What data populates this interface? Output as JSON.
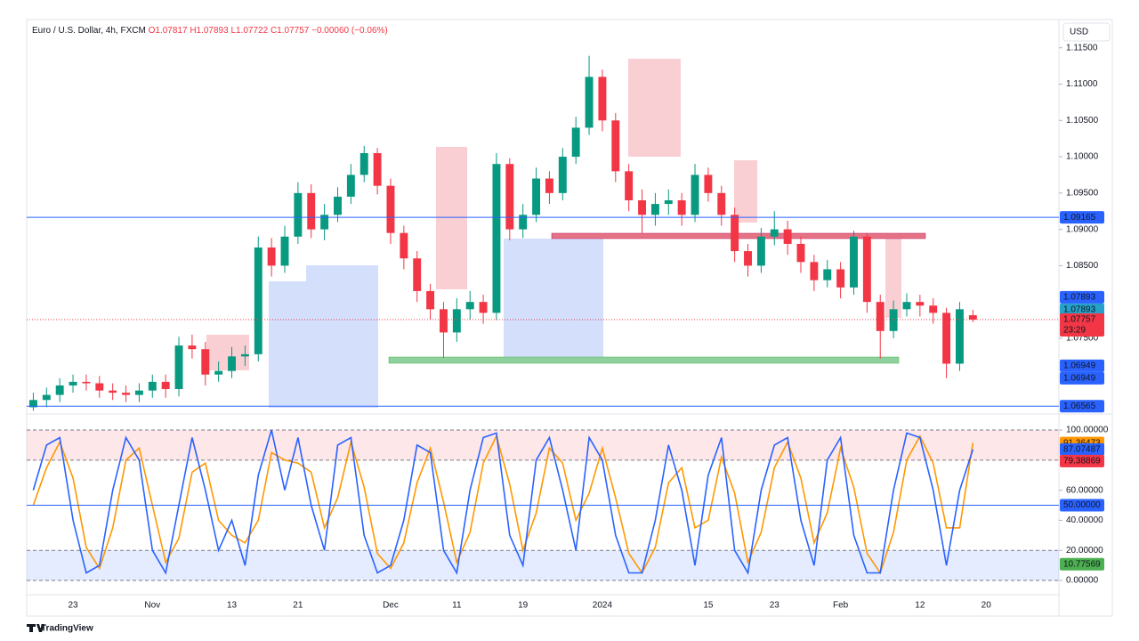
{
  "header": {
    "symbol": "Euro / U.S. Dollar, 4h, FXCM",
    "ohlc": "O1.07817 H1.07893 L1.07722 C1.07757",
    "change": "−0.00060 (−0.06%)",
    "currency": "USD",
    "brand": "TradingView"
  },
  "chart_data": [
    {
      "type": "candlestick",
      "categories": [
        null,
        null,
        null,
        "23",
        null,
        null,
        null,
        null,
        null,
        "Nov",
        null,
        null,
        null,
        null,
        null,
        "13",
        null,
        null,
        null,
        null,
        "21",
        null,
        null,
        null,
        null,
        null,
        null,
        "Dec",
        null,
        null,
        null,
        null,
        "11",
        null,
        null,
        null,
        null,
        "19",
        null,
        null,
        null,
        null,
        null,
        "2024",
        null,
        null,
        null,
        null,
        null,
        null,
        null,
        "15",
        null,
        null,
        null,
        null,
        "23",
        null,
        null,
        null,
        null,
        "Feb",
        null,
        null,
        null,
        null,
        null,
        "12",
        null,
        null,
        null,
        null,
        "20",
        null,
        null,
        null,
        null,
        null
      ],
      "open": [
        1.0655,
        1.0665,
        1.0672,
        1.0685,
        1.069,
        1.0688,
        1.0678,
        1.0675,
        1.0672,
        1.0678,
        1.069,
        1.068,
        1.074,
        1.0735,
        1.07,
        1.0705,
        1.0725,
        1.0728,
        1.0875,
        1.085,
        1.089,
        1.095,
        1.09,
        1.092,
        1.0945,
        1.0975,
        1.1005,
        1.096,
        1.0895,
        1.086,
        1.0815,
        1.079,
        1.0758,
        1.079,
        1.08,
        1.0785,
        1.099,
        1.09,
        1.092,
        1.097,
        1.095,
        1.1,
        1.104,
        1.111,
        1.105,
        1.098,
        1.094,
        1.092,
        1.0935,
        1.094,
        1.092,
        1.0975,
        1.095,
        1.092,
        1.087,
        1.085,
        1.089,
        1.09,
        1.088,
        1.0855,
        1.083,
        1.0845,
        1.082,
        1.089,
        1.08,
        1.076,
        1.079,
        1.08,
        1.0795,
        1.0785,
        1.0715,
        1.07817,
        null,
        null,
        null,
        null,
        null,
        null
      ],
      "high": [
        1.0675,
        1.0682,
        1.0695,
        1.07,
        1.07,
        1.0698,
        1.0688,
        1.0685,
        1.0688,
        1.07,
        1.07,
        1.0752,
        1.0755,
        1.0745,
        1.0718,
        1.0738,
        1.074,
        1.089,
        1.0888,
        1.0905,
        1.0965,
        1.0962,
        1.0935,
        1.0958,
        1.099,
        1.1015,
        1.1012,
        1.097,
        1.0905,
        1.087,
        1.0825,
        1.08,
        1.0805,
        1.0815,
        1.081,
        1.1005,
        1.0998,
        1.0935,
        1.0985,
        1.098,
        1.1012,
        1.1055,
        1.1139,
        1.112,
        1.106,
        1.099,
        1.0955,
        1.095,
        1.0955,
        1.095,
        1.099,
        1.0985,
        1.096,
        1.093,
        1.088,
        1.0902,
        1.0925,
        1.0912,
        1.089,
        1.0865,
        1.0858,
        1.0855,
        1.0898,
        1.0895,
        1.081,
        1.0802,
        1.0812,
        1.081,
        1.0805,
        1.0792,
        1.08,
        1.07893,
        null,
        null,
        null,
        null,
        null,
        null
      ],
      "low": [
        1.065,
        1.0655,
        1.0662,
        1.0675,
        1.0678,
        1.0668,
        1.0665,
        1.0662,
        1.0662,
        1.0668,
        1.0668,
        1.067,
        1.0722,
        1.0685,
        1.069,
        1.0695,
        1.0712,
        1.0718,
        1.0835,
        1.084,
        1.088,
        1.0888,
        1.0885,
        1.091,
        1.0935,
        1.0965,
        1.0948,
        1.088,
        1.0845,
        1.08,
        1.0775,
        1.0723,
        1.0745,
        1.0775,
        1.077,
        1.0775,
        1.0885,
        1.0888,
        1.091,
        1.0935,
        1.094,
        1.099,
        1.103,
        1.1035,
        1.0965,
        1.0925,
        1.0895,
        1.0905,
        1.092,
        1.0905,
        1.091,
        1.0938,
        1.0905,
        1.0855,
        1.0835,
        1.084,
        1.0878,
        1.0865,
        1.084,
        1.0815,
        1.082,
        1.0805,
        1.081,
        1.0785,
        1.0722,
        1.075,
        1.078,
        1.078,
        1.077,
        1.0695,
        1.0705,
        1.07722,
        null,
        null,
        null,
        null,
        null,
        null
      ],
      "close": [
        1.0665,
        1.0672,
        1.0685,
        1.069,
        1.0688,
        1.0678,
        1.0675,
        1.0672,
        1.0678,
        1.069,
        1.068,
        1.074,
        1.0735,
        1.07,
        1.0705,
        1.0725,
        1.0728,
        1.0875,
        1.085,
        1.089,
        1.095,
        1.09,
        1.092,
        1.0945,
        1.0975,
        1.1005,
        1.096,
        1.0895,
        1.086,
        1.0815,
        1.079,
        1.0758,
        1.079,
        1.08,
        1.0785,
        1.099,
        1.09,
        1.092,
        1.097,
        1.095,
        1.1,
        1.104,
        1.111,
        1.105,
        1.098,
        1.094,
        1.092,
        1.0935,
        1.094,
        1.092,
        1.0975,
        1.095,
        1.092,
        1.087,
        1.085,
        1.089,
        1.09,
        1.088,
        1.0855,
        1.083,
        1.0845,
        1.082,
        1.089,
        1.08,
        1.076,
        1.079,
        1.08,
        1.0795,
        1.0785,
        1.0715,
        1.079,
        1.07757,
        null,
        null,
        null,
        null,
        null,
        null
      ],
      "up_color": "#089981",
      "down_color": "#f23645",
      "ylim": [
        1.06494,
        1.11889
      ],
      "yticks": [
        {
          "value": 1.115,
          "label": "1.11500"
        },
        {
          "value": 1.11,
          "label": "1.11000"
        },
        {
          "value": 1.105,
          "label": "1.10500"
        },
        {
          "value": 1.1,
          "label": "1.10000"
        },
        {
          "value": 1.095,
          "label": "1.09500"
        },
        {
          "value": 1.09,
          "label": "1.09000"
        },
        {
          "value": 1.085,
          "label": "1.08500"
        },
        {
          "value": 1.075,
          "label": "1.07500"
        }
      ],
      "price_badges": [
        {
          "value": 1.09165,
          "label": "1.09165",
          "color": "#2962ff",
          "line": true
        },
        {
          "value": 1.07893,
          "label": "1.07893",
          "color": "#26a1c9"
        },
        {
          "value": 1.07893,
          "label": "1.07893",
          "color": "#2962ff"
        },
        {
          "value": 1.07757,
          "label": "1.07757",
          "sub": "23:29",
          "color": "#f23645",
          "line": true
        },
        {
          "value": 1.06949,
          "label": "1.06949",
          "color": "#2962ff"
        },
        {
          "value": 1.06949,
          "label": "1.06949",
          "color": "#2962ff"
        },
        {
          "value": 1.06565,
          "label": "1.06565",
          "color": "#2962ff",
          "line": true
        }
      ]
    },
    {
      "type": "line",
      "series": [
        {
          "color": "#2962ff",
          "values": [
            60,
            90,
            95,
            40,
            5,
            10,
            60,
            95,
            80,
            20,
            5,
            50,
            95,
            60,
            20,
            40,
            10,
            70,
            100,
            60,
            95,
            50,
            20,
            90,
            95,
            30,
            5,
            10,
            40,
            90,
            85,
            20,
            5,
            60,
            95,
            98,
            30,
            10,
            80,
            95,
            60,
            20,
            95,
            80,
            30,
            5,
            5,
            40,
            90,
            60,
            10,
            70,
            95,
            20,
            5,
            60,
            90,
            95,
            40,
            10,
            80,
            95,
            30,
            5,
            5,
            60,
            98,
            95,
            60,
            10,
            60,
            87.07487,
            null,
            null,
            null,
            null,
            null,
            null
          ]
        },
        {
          "color": "#ff9800",
          "values": [
            50,
            75,
            92,
            68,
            22,
            8,
            35,
            80,
            88,
            50,
            12,
            28,
            72,
            78,
            40,
            30,
            25,
            40,
            85,
            80,
            78,
            72,
            35,
            55,
            92,
            62,
            18,
            8,
            25,
            65,
            88,
            52,
            12,
            32,
            78,
            96,
            64,
            20,
            45,
            88,
            78,
            40,
            58,
            88,
            55,
            18,
            5,
            22,
            65,
            75,
            35,
            40,
            82,
            58,
            12,
            32,
            75,
            92,
            68,
            25,
            45,
            88,
            62,
            18,
            5,
            32,
            80,
            96,
            78,
            35,
            35,
            91.36473,
            null,
            null,
            null,
            null,
            null,
            null
          ]
        }
      ],
      "ylim": [
        -7.7,
        109.5
      ],
      "yticks": [
        {
          "value": 100,
          "label": "100.00000"
        },
        {
          "value": 60,
          "label": "60.00000"
        },
        {
          "value": 40,
          "label": "40.00000"
        },
        {
          "value": 20,
          "label": "20.00000"
        },
        {
          "value": 0,
          "label": "0.00000"
        }
      ],
      "bands": [
        {
          "from": 80,
          "to": 100,
          "color": "#f23645"
        },
        {
          "from": 0,
          "to": 20,
          "color": "#2962ff"
        }
      ],
      "badges": [
        {
          "value": 91.36473,
          "label": "91.36473",
          "color": "#ff9800"
        },
        {
          "value": 87.07487,
          "label": "87.07487",
          "color": "#2962ff"
        },
        {
          "value": 79.38869,
          "label": "79.38869",
          "color": "#f23645"
        },
        {
          "value": 50,
          "label": "50.00000",
          "color": "#2962ff",
          "line": true
        },
        {
          "value": 10.77569,
          "label": "10.77569",
          "color": "#4caf50"
        }
      ]
    }
  ]
}
